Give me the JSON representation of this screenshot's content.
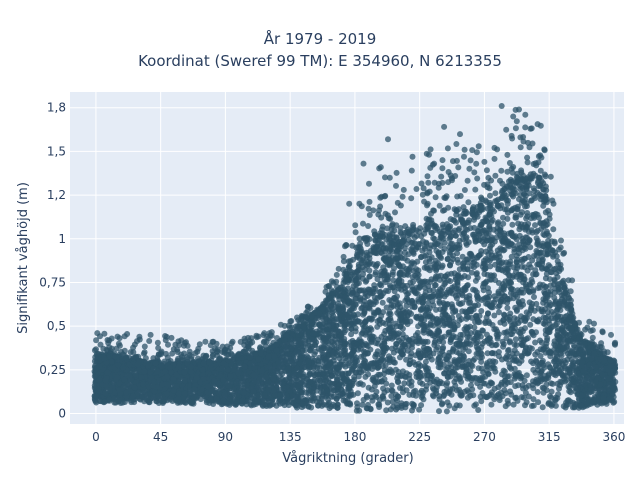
{
  "chart_data": {
    "type": "scatter",
    "title_lines": [
      "År 1979 - 2019",
      "Koordinat (Sweref 99 TM): E 354960, N 6213355"
    ],
    "xlabel": "Vågriktning (grader)",
    "ylabel": "Signifikant våghöjd (m)",
    "xlim": [
      -18,
      367
    ],
    "ylim": [
      -0.06,
      1.84
    ],
    "x_ticks": [
      0,
      45,
      90,
      135,
      180,
      225,
      270,
      315,
      360
    ],
    "x_tick_labels": [
      "0",
      "45",
      "90",
      "135",
      "180",
      "225",
      "270",
      "315",
      "360"
    ],
    "y_ticks": [
      0,
      0.25,
      0.5,
      0.75,
      1,
      1.25,
      1.5,
      1.75
    ],
    "y_tick_labels": [
      "0",
      "0,25",
      "0,5",
      "0,75",
      "1",
      "1,2",
      "1,5",
      "1,8"
    ],
    "grid": true,
    "legend": "none",
    "marker_color": "#2e5469",
    "background_color": "#e5ecf6",
    "envelope": [
      {
        "x": 0,
        "lo": 0.06,
        "hi": 0.34,
        "max": 0.46
      },
      {
        "x": 45,
        "lo": 0.06,
        "hi": 0.28,
        "max": 0.45
      },
      {
        "x": 90,
        "lo": 0.05,
        "hi": 0.3,
        "max": 0.41
      },
      {
        "x": 120,
        "lo": 0.04,
        "hi": 0.36,
        "max": 0.46
      },
      {
        "x": 150,
        "lo": 0.03,
        "hi": 0.55,
        "max": 0.64
      },
      {
        "x": 170,
        "lo": 0.02,
        "hi": 0.72,
        "max": 0.85
      },
      {
        "x": 185,
        "lo": 0.01,
        "hi": 1.0,
        "max": 1.43
      },
      {
        "x": 200,
        "lo": 0.01,
        "hi": 1.02,
        "max": 1.41
      },
      {
        "x": 225,
        "lo": 0.01,
        "hi": 1.05,
        "max": 1.47
      },
      {
        "x": 250,
        "lo": 0.01,
        "hi": 1.12,
        "max": 1.65
      },
      {
        "x": 270,
        "lo": 0.02,
        "hi": 1.2,
        "max": 1.53
      },
      {
        "x": 290,
        "lo": 0.03,
        "hi": 1.32,
        "max": 1.76
      },
      {
        "x": 310,
        "lo": 0.03,
        "hi": 1.35,
        "max": 1.65
      },
      {
        "x": 320,
        "lo": 0.03,
        "hi": 0.9,
        "max": 1.2
      },
      {
        "x": 335,
        "lo": 0.03,
        "hi": 0.45,
        "max": 0.62
      },
      {
        "x": 350,
        "lo": 0.05,
        "hi": 0.34,
        "max": 0.48
      },
      {
        "x": 360,
        "lo": 0.06,
        "hi": 0.3,
        "max": 0.45
      }
    ],
    "outliers": [
      {
        "x": 1,
        "y": 0.46
      },
      {
        "x": 15,
        "y": 0.44
      },
      {
        "x": 38,
        "y": 0.45
      },
      {
        "x": 81,
        "y": 0.41
      },
      {
        "x": 117,
        "y": 0.46
      },
      {
        "x": 176,
        "y": 1.2
      },
      {
        "x": 186,
        "y": 1.43
      },
      {
        "x": 198,
        "y": 1.41
      },
      {
        "x": 203,
        "y": 1.57
      },
      {
        "x": 214,
        "y": 1.28
      },
      {
        "x": 220,
        "y": 1.47
      },
      {
        "x": 232,
        "y": 1.27
      },
      {
        "x": 235,
        "y": 1.43
      },
      {
        "x": 242,
        "y": 1.64
      },
      {
        "x": 263,
        "y": 1.38
      },
      {
        "x": 266,
        "y": 1.53
      },
      {
        "x": 270,
        "y": 1.44
      },
      {
        "x": 277,
        "y": 1.52
      },
      {
        "x": 282,
        "y": 1.76
      },
      {
        "x": 286,
        "y": 1.48
      },
      {
        "x": 290,
        "y": 1.7
      },
      {
        "x": 294,
        "y": 1.74
      },
      {
        "x": 295,
        "y": 1.58
      },
      {
        "x": 302,
        "y": 1.63
      },
      {
        "x": 306,
        "y": 1.42
      },
      {
        "x": 318,
        "y": 1.2
      },
      {
        "x": 323,
        "y": 0.95
      },
      {
        "x": 330,
        "y": 0.62
      },
      {
        "x": 340,
        "y": 0.48
      },
      {
        "x": 352,
        "y": 0.47
      },
      {
        "x": 358,
        "y": 0.45
      }
    ]
  }
}
